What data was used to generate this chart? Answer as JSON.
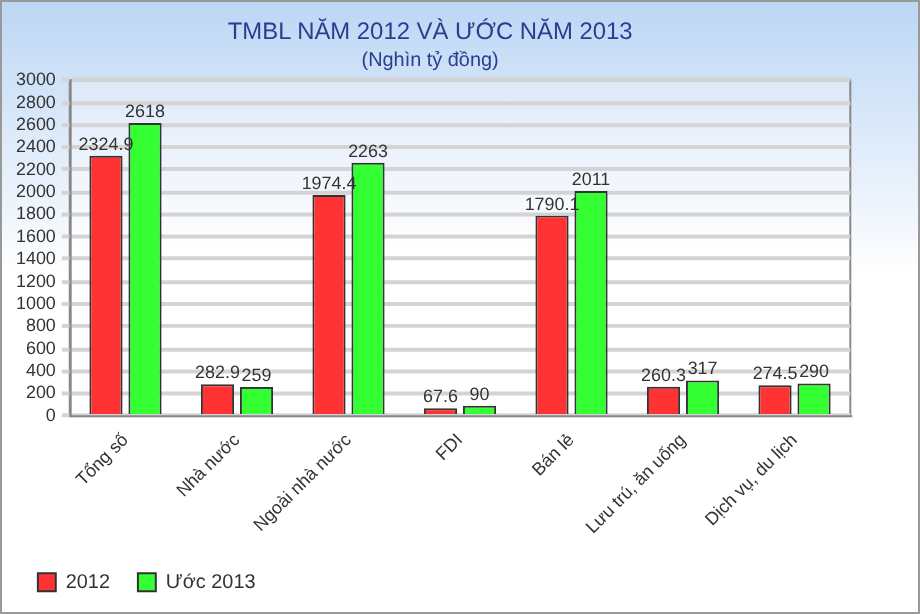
{
  "chart_data": {
    "type": "bar",
    "title": "TMBL NĂM 2012 VÀ ƯỚC NĂM 2013",
    "subtitle": "(Nghìn tỷ đồng)",
    "categories": [
      "Tổng số",
      "Nhà nước",
      "Ngoài nhà nước",
      "FDI",
      "Bán lẻ",
      "Lưu trú, ăn uống",
      "Dịch vụ, du lịch"
    ],
    "series": [
      {
        "name": "2012",
        "color": "#ff3333",
        "values": [
          2324.9,
          282.9,
          1974.4,
          67.6,
          1790.1,
          260.3,
          274.5
        ]
      },
      {
        "name": "Ước 2013",
        "color": "#33ff33",
        "values": [
          2618,
          259,
          2263,
          90,
          2011,
          317,
          290
        ]
      }
    ],
    "ylim": [
      0,
      3000
    ],
    "yticks": [
      0,
      200,
      400,
      600,
      800,
      1000,
      1200,
      1400,
      1600,
      1800,
      2000,
      2200,
      2400,
      2600,
      2800,
      3000
    ],
    "grid": "y",
    "legend": "bottom left",
    "data_labels": true
  }
}
